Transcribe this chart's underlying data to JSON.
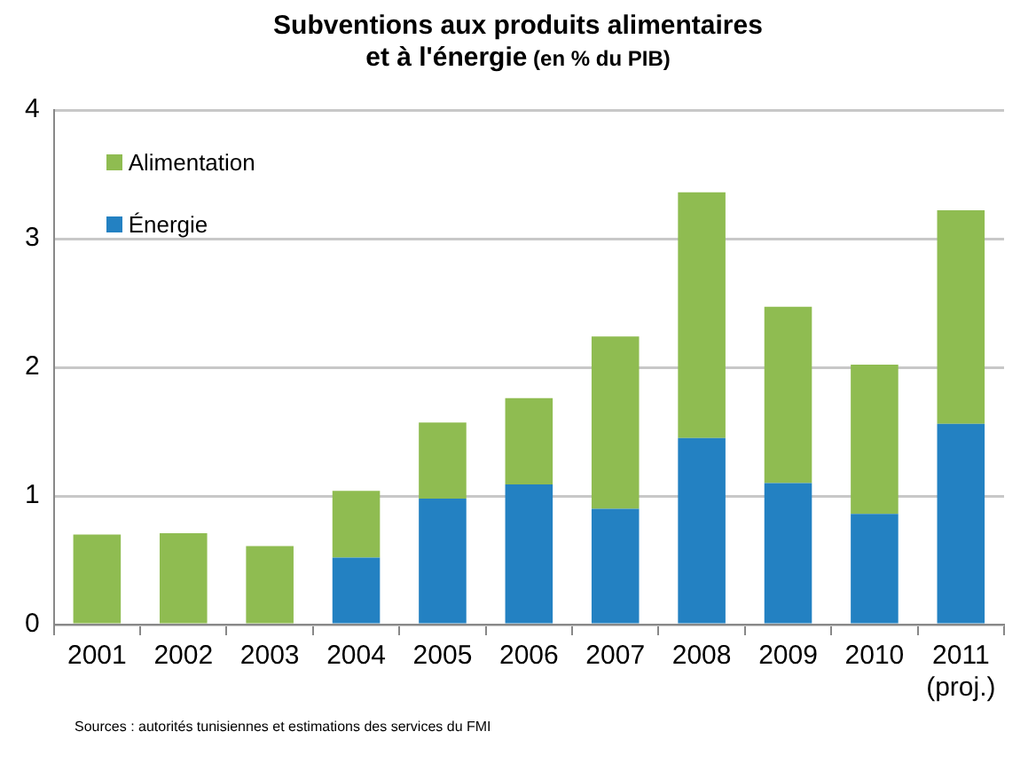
{
  "chart_data": {
    "type": "bar",
    "title": "Subventions aux produits alimentaires\net à l'énergie",
    "subtitle": "(en % du PIB)",
    "categories": [
      "2001",
      "2002",
      "2003",
      "2004",
      "2005",
      "2006",
      "2007",
      "2008",
      "2009",
      "2010",
      "2011\n(proj.)"
    ],
    "series": [
      {
        "name": "Énergie",
        "color": "#2381c2",
        "values": [
          null,
          null,
          null,
          0.52,
          0.98,
          1.09,
          0.9,
          1.45,
          1.1,
          0.86,
          1.56
        ]
      },
      {
        "name": "Alimentation",
        "color": "#8fbc51",
        "values": [
          0.7,
          0.71,
          0.61,
          0.52,
          0.59,
          0.67,
          1.34,
          1.91,
          1.37,
          1.16,
          1.66
        ]
      }
    ],
    "stacked": true,
    "ylim": [
      0,
      4
    ],
    "yticks": [
      0,
      1,
      2,
      3,
      4
    ],
    "grid": "y",
    "legend": "top left",
    "annotations": [
      "Sources : autorités tunisiennes  et estimations des services du FMI"
    ]
  }
}
